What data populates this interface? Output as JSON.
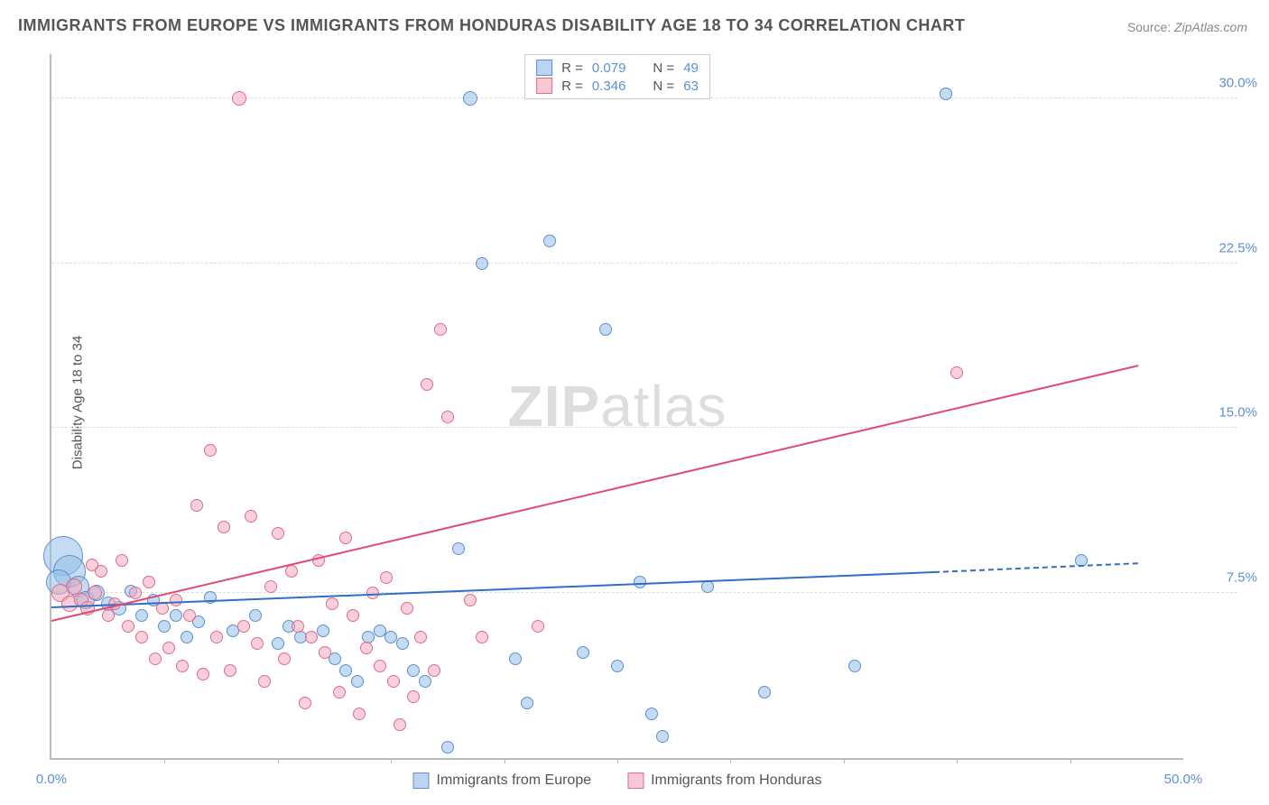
{
  "title": "IMMIGRANTS FROM EUROPE VS IMMIGRANTS FROM HONDURAS DISABILITY AGE 18 TO 34 CORRELATION CHART",
  "source_label": "Source:",
  "source_value": "ZipAtlas.com",
  "ylabel": "Disability Age 18 to 34",
  "watermark_bold": "ZIP",
  "watermark_light": "atlas",
  "chart": {
    "type": "scatter",
    "xlim": [
      0,
      50
    ],
    "ylim": [
      0,
      32
    ],
    "background_color": "#ffffff",
    "grid_color": "#dddddd",
    "axis_color": "#bbbbbb",
    "text_color": "#555555",
    "yticks": [
      {
        "v": 7.5,
        "label": "7.5%"
      },
      {
        "v": 15.0,
        "label": "15.0%"
      },
      {
        "v": 22.5,
        "label": "22.5%"
      },
      {
        "v": 30.0,
        "label": "30.0%"
      }
    ],
    "ytick_color": "#5b8fd6",
    "xtick_positions": [
      5,
      10,
      15,
      20,
      25,
      30,
      35,
      40,
      45
    ],
    "x_start_label": "0.0%",
    "x_end_label": "50.0%",
    "xlabel_color": "#5b8fd6",
    "legend_top": [
      {
        "swatch_fill": "#bcd4ef",
        "swatch_border": "#5b8fd6",
        "r_label": "R =",
        "r_value": "0.079",
        "n_label": "N =",
        "n_value": "49",
        "value_color": "#5b8fd6"
      },
      {
        "swatch_fill": "#f6c8d3",
        "swatch_border": "#e36a8b",
        "r_label": "R =",
        "r_value": "0.346",
        "n_label": "N =",
        "n_value": "63",
        "value_color": "#5b8fd6"
      }
    ],
    "legend_bottom": [
      {
        "swatch_fill": "#bcd4ef",
        "swatch_border": "#5b8fd6",
        "label": "Immigrants from Europe"
      },
      {
        "swatch_fill": "#f6c8d3",
        "swatch_border": "#e36a8b",
        "label": "Immigrants from Honduras"
      }
    ],
    "series": [
      {
        "name": "europe",
        "fill": "rgba(150,190,230,0.55)",
        "stroke": "#5b8fd6",
        "points": [
          {
            "x": 0.5,
            "y": 9.2,
            "r": 22
          },
          {
            "x": 0.8,
            "y": 8.5,
            "r": 18
          },
          {
            "x": 0.3,
            "y": 8.0,
            "r": 14
          },
          {
            "x": 1.2,
            "y": 7.8,
            "r": 12
          },
          {
            "x": 1.5,
            "y": 7.2,
            "r": 10
          },
          {
            "x": 2.0,
            "y": 7.5,
            "r": 9
          },
          {
            "x": 2.5,
            "y": 7.0,
            "r": 8
          },
          {
            "x": 3.0,
            "y": 6.8,
            "r": 8
          },
          {
            "x": 3.5,
            "y": 7.6,
            "r": 7
          },
          {
            "x": 4.0,
            "y": 6.5,
            "r": 7
          },
          {
            "x": 4.5,
            "y": 7.2,
            "r": 7
          },
          {
            "x": 5.0,
            "y": 6.0,
            "r": 7
          },
          {
            "x": 5.5,
            "y": 6.5,
            "r": 7
          },
          {
            "x": 6.0,
            "y": 5.5,
            "r": 7
          },
          {
            "x": 6.5,
            "y": 6.2,
            "r": 7
          },
          {
            "x": 7.0,
            "y": 7.3,
            "r": 7
          },
          {
            "x": 8.0,
            "y": 5.8,
            "r": 7
          },
          {
            "x": 9.0,
            "y": 6.5,
            "r": 7
          },
          {
            "x": 10.0,
            "y": 5.2,
            "r": 7
          },
          {
            "x": 10.5,
            "y": 6.0,
            "r": 7
          },
          {
            "x": 11.0,
            "y": 5.5,
            "r": 7
          },
          {
            "x": 12.0,
            "y": 5.8,
            "r": 7
          },
          {
            "x": 12.5,
            "y": 4.5,
            "r": 7
          },
          {
            "x": 13.0,
            "y": 4.0,
            "r": 7
          },
          {
            "x": 13.5,
            "y": 3.5,
            "r": 7
          },
          {
            "x": 14.0,
            "y": 5.5,
            "r": 7
          },
          {
            "x": 14.5,
            "y": 5.8,
            "r": 7
          },
          {
            "x": 15.0,
            "y": 5.5,
            "r": 7
          },
          {
            "x": 15.5,
            "y": 5.2,
            "r": 7
          },
          {
            "x": 16.0,
            "y": 4.0,
            "r": 7
          },
          {
            "x": 16.5,
            "y": 3.5,
            "r": 7
          },
          {
            "x": 18.0,
            "y": 9.5,
            "r": 7
          },
          {
            "x": 17.5,
            "y": 0.5,
            "r": 7
          },
          {
            "x": 18.5,
            "y": 30.0,
            "r": 8
          },
          {
            "x": 19.0,
            "y": 22.5,
            "r": 7
          },
          {
            "x": 20.5,
            "y": 4.5,
            "r": 7
          },
          {
            "x": 21.0,
            "y": 2.5,
            "r": 7
          },
          {
            "x": 22.0,
            "y": 23.5,
            "r": 7
          },
          {
            "x": 23.5,
            "y": 4.8,
            "r": 7
          },
          {
            "x": 24.5,
            "y": 19.5,
            "r": 7
          },
          {
            "x": 25.0,
            "y": 4.2,
            "r": 7
          },
          {
            "x": 26.0,
            "y": 8.0,
            "r": 7
          },
          {
            "x": 26.5,
            "y": 2.0,
            "r": 7
          },
          {
            "x": 27.0,
            "y": 1.0,
            "r": 7
          },
          {
            "x": 29.0,
            "y": 7.8,
            "r": 7
          },
          {
            "x": 31.5,
            "y": 3.0,
            "r": 7
          },
          {
            "x": 35.5,
            "y": 4.2,
            "r": 7
          },
          {
            "x": 39.5,
            "y": 30.2,
            "r": 7
          },
          {
            "x": 45.5,
            "y": 9.0,
            "r": 7
          }
        ],
        "trend": {
          "color": "#2f6fc4",
          "x1": 0,
          "y1": 6.8,
          "x2": 39,
          "y2": 8.4,
          "dash_x2": 48,
          "dash_y2": 8.8
        }
      },
      {
        "name": "honduras",
        "fill": "rgba(240,170,190,0.55)",
        "stroke": "#e36a8b",
        "points": [
          {
            "x": 0.4,
            "y": 7.5,
            "r": 10
          },
          {
            "x": 0.8,
            "y": 7.0,
            "r": 9
          },
          {
            "x": 1.0,
            "y": 7.8,
            "r": 9
          },
          {
            "x": 1.3,
            "y": 7.2,
            "r": 8
          },
          {
            "x": 1.6,
            "y": 6.8,
            "r": 8
          },
          {
            "x": 1.9,
            "y": 7.5,
            "r": 8
          },
          {
            "x": 2.2,
            "y": 8.5,
            "r": 7
          },
          {
            "x": 2.5,
            "y": 6.5,
            "r": 7
          },
          {
            "x": 2.8,
            "y": 7.0,
            "r": 7
          },
          {
            "x": 3.1,
            "y": 9.0,
            "r": 7
          },
          {
            "x": 3.4,
            "y": 6.0,
            "r": 7
          },
          {
            "x": 3.7,
            "y": 7.5,
            "r": 7
          },
          {
            "x": 4.0,
            "y": 5.5,
            "r": 7
          },
          {
            "x": 4.3,
            "y": 8.0,
            "r": 7
          },
          {
            "x": 4.6,
            "y": 4.5,
            "r": 7
          },
          {
            "x": 4.9,
            "y": 6.8,
            "r": 7
          },
          {
            "x": 5.2,
            "y": 5.0,
            "r": 7
          },
          {
            "x": 5.5,
            "y": 7.2,
            "r": 7
          },
          {
            "x": 5.8,
            "y": 4.2,
            "r": 7
          },
          {
            "x": 6.1,
            "y": 6.5,
            "r": 7
          },
          {
            "x": 6.4,
            "y": 11.5,
            "r": 7
          },
          {
            "x": 6.7,
            "y": 3.8,
            "r": 7
          },
          {
            "x": 7.0,
            "y": 14.0,
            "r": 7
          },
          {
            "x": 7.3,
            "y": 5.5,
            "r": 7
          },
          {
            "x": 7.6,
            "y": 10.5,
            "r": 7
          },
          {
            "x": 7.9,
            "y": 4.0,
            "r": 7
          },
          {
            "x": 8.3,
            "y": 30.0,
            "r": 8
          },
          {
            "x": 8.5,
            "y": 6.0,
            "r": 7
          },
          {
            "x": 8.8,
            "y": 11.0,
            "r": 7
          },
          {
            "x": 9.1,
            "y": 5.2,
            "r": 7
          },
          {
            "x": 9.4,
            "y": 3.5,
            "r": 7
          },
          {
            "x": 9.7,
            "y": 7.8,
            "r": 7
          },
          {
            "x": 10.0,
            "y": 10.2,
            "r": 7
          },
          {
            "x": 10.3,
            "y": 4.5,
            "r": 7
          },
          {
            "x": 10.6,
            "y": 8.5,
            "r": 7
          },
          {
            "x": 10.9,
            "y": 6.0,
            "r": 7
          },
          {
            "x": 11.2,
            "y": 2.5,
            "r": 7
          },
          {
            "x": 11.5,
            "y": 5.5,
            "r": 7
          },
          {
            "x": 11.8,
            "y": 9.0,
            "r": 7
          },
          {
            "x": 12.1,
            "y": 4.8,
            "r": 7
          },
          {
            "x": 12.4,
            "y": 7.0,
            "r": 7
          },
          {
            "x": 12.7,
            "y": 3.0,
            "r": 7
          },
          {
            "x": 13.0,
            "y": 10.0,
            "r": 7
          },
          {
            "x": 13.3,
            "y": 6.5,
            "r": 7
          },
          {
            "x": 13.6,
            "y": 2.0,
            "r": 7
          },
          {
            "x": 13.9,
            "y": 5.0,
            "r": 7
          },
          {
            "x": 14.2,
            "y": 7.5,
            "r": 7
          },
          {
            "x": 14.5,
            "y": 4.2,
            "r": 7
          },
          {
            "x": 14.8,
            "y": 8.2,
            "r": 7
          },
          {
            "x": 15.1,
            "y": 3.5,
            "r": 7
          },
          {
            "x": 15.4,
            "y": 1.5,
            "r": 7
          },
          {
            "x": 15.7,
            "y": 6.8,
            "r": 7
          },
          {
            "x": 16.0,
            "y": 2.8,
            "r": 7
          },
          {
            "x": 16.3,
            "y": 5.5,
            "r": 7
          },
          {
            "x": 16.6,
            "y": 17.0,
            "r": 7
          },
          {
            "x": 16.9,
            "y": 4.0,
            "r": 7
          },
          {
            "x": 17.2,
            "y": 19.5,
            "r": 7
          },
          {
            "x": 17.5,
            "y": 15.5,
            "r": 7
          },
          {
            "x": 18.5,
            "y": 7.2,
            "r": 7
          },
          {
            "x": 19.0,
            "y": 5.5,
            "r": 7
          },
          {
            "x": 21.5,
            "y": 6.0,
            "r": 7
          },
          {
            "x": 40.0,
            "y": 17.5,
            "r": 7
          },
          {
            "x": 1.8,
            "y": 8.8,
            "r": 7
          }
        ],
        "trend": {
          "color": "#e04a75",
          "x1": 0,
          "y1": 6.2,
          "x2": 48,
          "y2": 17.8
        }
      }
    ]
  }
}
